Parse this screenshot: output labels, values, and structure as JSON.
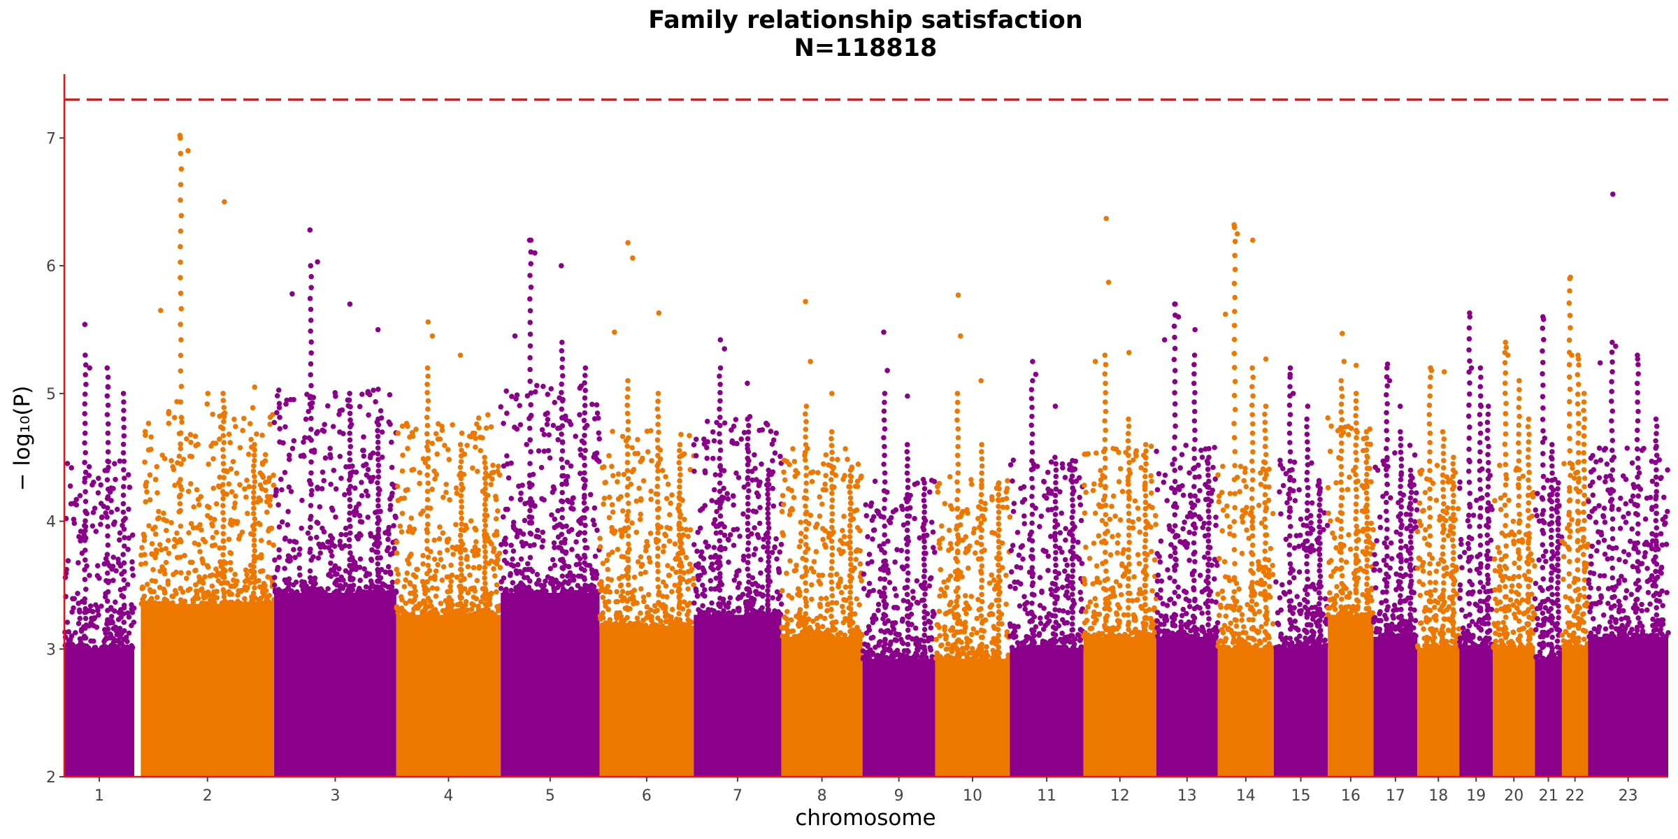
{
  "chart_data": {
    "type": "scatter",
    "title": "Family relationship satisfaction",
    "subtitle": "N=118818",
    "xlabel": "chromosome",
    "ylabel": "− log₁₀(P)",
    "ylim": [
      2,
      7.5
    ],
    "yticks": [
      2,
      3,
      4,
      5,
      6,
      7
    ],
    "significance_line": 7.3,
    "grid": false,
    "colors": {
      "odd_chromosome": "#8B008B",
      "even_chromosome": "#EE7700",
      "significance": "#EE1111",
      "axis": "#EE1111"
    },
    "chromosomes": [
      {
        "label": "1",
        "start": 0,
        "end": 75,
        "base_max": 3.5,
        "peaks": [
          5.3,
          5.2,
          5.0
        ],
        "tops": [
          5.54,
          5.2,
          5.05
        ]
      },
      {
        "label": "2",
        "start": 82,
        "end": 225,
        "base_max": 3.9,
        "peaks": [
          7.0,
          5.0,
          4.6
        ],
        "tops": [
          7.02,
          6.9,
          6.5,
          5.65,
          5.05,
          5.0
        ]
      },
      {
        "label": "3",
        "start": 225,
        "end": 356,
        "base_max": 4.0,
        "peaks": [
          6.0,
          5.0,
          4.8
        ],
        "tops": [
          6.28,
          6.03,
          5.7,
          5.78,
          5.5
        ]
      },
      {
        "label": "4",
        "start": 356,
        "end": 468,
        "base_max": 3.8,
        "peaks": [
          5.2,
          4.6,
          4.5
        ],
        "tops": [
          5.56,
          5.45,
          5.3
        ]
      },
      {
        "label": "5",
        "start": 468,
        "end": 574,
        "base_max": 4.0,
        "peaks": [
          6.2,
          5.4,
          5.2
        ],
        "tops": [
          6.2,
          6.1,
          6.0,
          5.45
        ]
      },
      {
        "label": "6",
        "start": 574,
        "end": 675,
        "base_max": 3.7,
        "peaks": [
          5.1,
          5.0,
          4.6
        ],
        "tops": [
          6.18,
          6.06,
          5.63,
          5.48
        ]
      },
      {
        "label": "7",
        "start": 675,
        "end": 769,
        "base_max": 3.8,
        "peaks": [
          5.2,
          4.8,
          4.4
        ],
        "tops": [
          5.42,
          5.35,
          5.08
        ]
      },
      {
        "label": "8",
        "start": 769,
        "end": 856,
        "base_max": 3.6,
        "peaks": [
          4.9,
          4.7,
          4.4
        ],
        "tops": [
          5.72,
          5.25,
          5.0
        ]
      },
      {
        "label": "9",
        "start": 856,
        "end": 934,
        "base_max": 3.4,
        "peaks": [
          5.0,
          4.6,
          4.3
        ],
        "tops": [
          5.48,
          5.18,
          4.98
        ]
      },
      {
        "label": "10",
        "start": 934,
        "end": 1014,
        "base_max": 3.4,
        "peaks": [
          5.0,
          4.6,
          4.3
        ],
        "tops": [
          5.77,
          5.45,
          5.1
        ]
      },
      {
        "label": "11",
        "start": 1014,
        "end": 1093,
        "base_max": 3.5,
        "peaks": [
          5.1,
          4.5,
          4.4
        ],
        "tops": [
          5.25,
          5.15,
          4.9
        ]
      },
      {
        "label": "12",
        "start": 1093,
        "end": 1171,
        "base_max": 3.6,
        "peaks": [
          5.3,
          4.8,
          4.6
        ],
        "tops": [
          6.37,
          5.87,
          5.32,
          5.25
        ]
      },
      {
        "label": "13",
        "start": 1171,
        "end": 1237,
        "base_max": 3.6,
        "peaks": [
          5.7,
          5.3,
          4.5
        ],
        "tops": [
          5.7,
          5.6,
          5.5,
          5.42
        ]
      },
      {
        "label": "14",
        "start": 1237,
        "end": 1297,
        "base_max": 3.5,
        "peaks": [
          6.3,
          5.2,
          4.9
        ],
        "tops": [
          6.32,
          6.25,
          6.2,
          5.62,
          5.27
        ]
      },
      {
        "label": "15",
        "start": 1297,
        "end": 1355,
        "base_max": 3.5,
        "peaks": [
          5.2,
          4.8,
          4.3
        ],
        "tops": [
          5.15,
          5.0,
          4.9
        ]
      },
      {
        "label": "16",
        "start": 1355,
        "end": 1404,
        "base_max": 3.8,
        "peaks": [
          5.1,
          5.0,
          4.7
        ],
        "tops": [
          5.47,
          5.25,
          5.22
        ]
      },
      {
        "label": "17",
        "start": 1404,
        "end": 1451,
        "base_max": 3.6,
        "peaks": [
          5.2,
          4.7,
          4.4
        ],
        "tops": [
          5.23,
          5.1,
          4.9
        ]
      },
      {
        "label": "18",
        "start": 1451,
        "end": 1496,
        "base_max": 3.5,
        "peaks": [
          5.2,
          4.7,
          4.5
        ],
        "tops": [
          5.2,
          5.18,
          5.17
        ]
      },
      {
        "label": "19",
        "start": 1496,
        "end": 1532,
        "base_max": 3.5,
        "peaks": [
          5.6,
          5.2,
          4.9
        ],
        "tops": [
          5.63,
          5.2,
          4.9
        ]
      },
      {
        "label": "20",
        "start": 1532,
        "end": 1577,
        "base_max": 3.5,
        "peaks": [
          5.4,
          5.1,
          4.8
        ],
        "tops": [
          5.36,
          5.3,
          5.1
        ]
      },
      {
        "label": "21",
        "start": 1577,
        "end": 1606,
        "base_max": 3.4,
        "peaks": [
          5.6,
          4.6,
          4.3
        ],
        "tops": [
          5.58,
          4.65,
          4.5
        ]
      },
      {
        "label": "22",
        "start": 1606,
        "end": 1634,
        "base_max": 3.5,
        "peaks": [
          5.9,
          5.3,
          5.0
        ],
        "tops": [
          5.91,
          5.3,
          5.27
        ]
      },
      {
        "label": "23",
        "start": 1634,
        "end": 1720,
        "base_max": 3.6,
        "peaks": [
          5.4,
          5.3,
          4.8
        ],
        "tops": [
          6.56,
          5.37,
          5.27,
          5.24
        ]
      }
    ]
  }
}
